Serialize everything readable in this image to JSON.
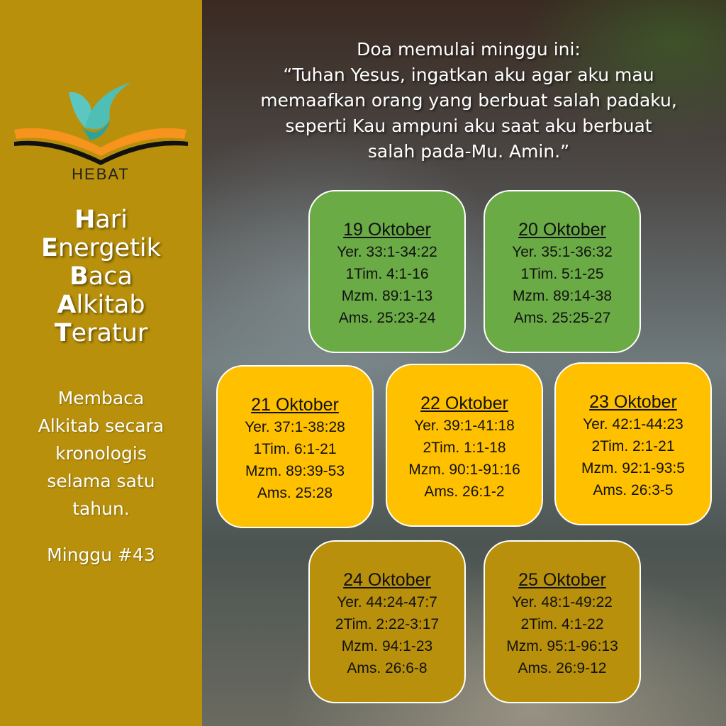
{
  "sidebar": {
    "logo_text": "HEBAT",
    "acronym": [
      {
        "initial": "H",
        "rest": "ari"
      },
      {
        "initial": "E",
        "rest": "nergetik"
      },
      {
        "initial": "B",
        "rest": "aca"
      },
      {
        "initial": "A",
        "rest": "lkitab"
      },
      {
        "initial": "T",
        "rest": "eratur"
      }
    ],
    "description_lines": [
      "Membaca",
      "Alkitab secara",
      "kronologis",
      "selama satu",
      "tahun."
    ],
    "week_label": "Minggu #43"
  },
  "prayer": {
    "lines": [
      "Doa memulai minggu ini:",
      "“Tuhan Yesus, ingatkan aku agar aku mau",
      "memaafkan orang yang berbuat salah padaku,",
      "seperti Kau ampuni aku saat aku berbuat",
      "salah pada-Mu. Amin.”"
    ]
  },
  "colors": {
    "sidebar": "#b8900b",
    "green": "#6bab46",
    "yellow": "#ffc000",
    "gold": "#b8900b"
  },
  "days": [
    {
      "date": "19 Oktober",
      "readings": [
        "Yer. 33:1-34:22",
        "1Tim. 4:1-16",
        "Mzm. 89:1-13",
        "Ams. 25:23-24"
      ],
      "color": "green"
    },
    {
      "date": "20 Oktober",
      "readings": [
        "Yer. 35:1-36:32",
        "1Tim. 5:1-25",
        "Mzm. 89:14-38",
        "Ams. 25:25-27"
      ],
      "color": "green"
    },
    {
      "date": "21 Oktober",
      "readings": [
        "Yer. 37:1-38:28",
        "1Tim. 6:1-21",
        "Mzm. 89:39-53",
        "Ams. 25:28"
      ],
      "color": "yellow"
    },
    {
      "date": "22 Oktober",
      "readings": [
        "Yer. 39:1-41:18",
        "2Tim. 1:1-18",
        "Mzm. 90:1-91:16",
        "Ams. 26:1-2"
      ],
      "color": "yellow"
    },
    {
      "date": "23 Oktober",
      "readings": [
        "Yer. 42:1-44:23",
        "2Tim. 2:1-21",
        "Mzm. 92:1-93:5",
        "Ams. 26:3-5"
      ],
      "color": "yellow"
    },
    {
      "date": "24 Oktober",
      "readings": [
        "Yer. 44:24-47:7",
        "2Tim. 2:22-3:17",
        "Mzm. 94:1-23",
        "Ams. 26:6-8"
      ],
      "color": "gold"
    },
    {
      "date": "25 Oktober",
      "readings": [
        "Yer. 48:1-49:22",
        "2Tim. 4:1-22",
        "Mzm. 95:1-96:13",
        "Ams. 26:9-12"
      ],
      "color": "gold"
    }
  ]
}
